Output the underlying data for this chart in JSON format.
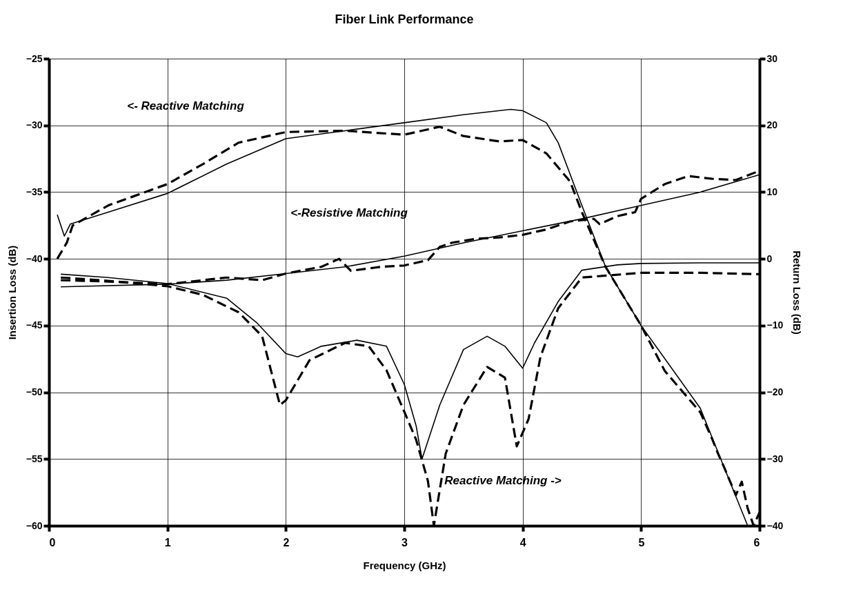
{
  "chart_data": {
    "type": "line",
    "title": "Fiber Link Performance",
    "xlabel": "Frequency (GHz)",
    "ylabel": "Insertion Loss (dB)",
    "y2label": "Return Loss (dB)",
    "xlim": [
      0,
      6
    ],
    "xticks": [
      0,
      1,
      2,
      3,
      4,
      5,
      6
    ],
    "ylim": [
      -60,
      -25
    ],
    "yticks": [
      -60,
      -55,
      -50,
      -45,
      -40,
      -35,
      -30,
      -25
    ],
    "y2lim": [
      -40,
      30
    ],
    "y2ticks": [
      -40,
      -30,
      -20,
      -10,
      0,
      10,
      20,
      30
    ],
    "grid": true,
    "marker": "none",
    "series": [
      {
        "color": "#000000",
        "line_style": "solid",
        "x": [
          0.07,
          0.13,
          0.18,
          0.5,
          1.0,
          1.5,
          2.0,
          2.5,
          3.0,
          3.5,
          3.9,
          4.0,
          4.2,
          4.3,
          4.5,
          4.7,
          5.0,
          5.5,
          5.9
        ],
        "values": [
          -36.7,
          -38.3,
          -37.4,
          -36.5,
          -35.1,
          -32.9,
          -31.0,
          -30.4,
          -29.8,
          -29.2,
          -28.8,
          -28.9,
          -29.8,
          -31.3,
          -36.0,
          -40.6,
          -45.0,
          -51.2,
          -60.0
        ]
      },
      {
        "color": "#000000",
        "line_style": "dashed",
        "x": [
          0.07,
          0.15,
          0.2,
          0.5,
          1.0,
          1.3,
          1.6,
          2.0,
          2.5,
          3.0,
          3.3,
          3.5,
          3.8,
          4.0,
          4.2,
          4.4,
          4.5,
          4.7,
          5.0,
          5.2,
          5.5,
          5.6,
          5.65,
          5.7,
          5.8,
          5.85,
          5.9,
          5.95,
          6.0
        ],
        "values": [
          -40.0,
          -38.8,
          -37.5,
          -36.0,
          -34.4,
          -32.9,
          -31.3,
          -30.5,
          -30.4,
          -30.7,
          -30.1,
          -30.8,
          -31.2,
          -31.1,
          -32.1,
          -34.2,
          -36.5,
          -40.6,
          -45.0,
          -48.4,
          -51.5,
          -53.5,
          -54.6,
          -55.6,
          -57.7,
          -56.7,
          -58.7,
          -60.0,
          -59.0
        ]
      },
      {
        "color": "#000000",
        "line_style": "solid",
        "x": [
          0.1,
          1.0,
          1.5,
          2.0,
          2.5,
          3.0,
          3.5,
          4.0,
          4.5,
          5.0,
          5.5,
          6.0
        ],
        "values": [
          -42.1,
          -41.9,
          -41.6,
          -41.1,
          -40.6,
          -39.8,
          -38.8,
          -37.9,
          -37.0,
          -36.0,
          -35.0,
          -33.7
        ]
      },
      {
        "color": "#000000",
        "line_style": "dashed",
        "x": [
          0.1,
          0.5,
          1.0,
          1.5,
          1.8,
          2.0,
          2.3,
          2.45,
          2.55,
          2.8,
          3.0,
          3.2,
          3.3,
          3.4,
          3.6,
          3.8,
          4.0,
          4.2,
          4.4,
          4.6,
          4.65,
          4.8,
          4.95,
          5.0,
          5.2,
          5.4,
          5.6,
          5.8,
          6.0
        ],
        "values": [
          -41.6,
          -41.7,
          -41.9,
          -41.4,
          -41.6,
          -41.1,
          -40.6,
          -40.0,
          -40.9,
          -40.6,
          -40.5,
          -40.1,
          -39.1,
          -38.8,
          -38.5,
          -38.4,
          -38.2,
          -37.8,
          -37.2,
          -37.0,
          -37.4,
          -36.8,
          -36.5,
          -35.5,
          -34.4,
          -33.8,
          -34.0,
          -34.1,
          -33.4
        ]
      },
      {
        "color": "#000000",
        "line_style": "solid",
        "axis": "y2",
        "x": [
          0.1,
          0.5,
          1.0,
          1.5,
          1.75,
          2.0,
          2.1,
          2.3,
          2.6,
          2.85,
          3.0,
          3.1,
          3.15,
          3.3,
          3.5,
          3.7,
          3.85,
          4.0,
          4.1,
          4.3,
          4.5,
          4.8,
          5.0,
          5.5,
          6.0
        ],
        "values": [
          -2.3,
          -2.8,
          -3.7,
          -5.9,
          -9.5,
          -14.2,
          -14.7,
          -13.1,
          -12.2,
          -13.1,
          -18.8,
          -25.0,
          -30.0,
          -21.9,
          -13.6,
          -11.6,
          -13.1,
          -16.4,
          -12.6,
          -6.4,
          -1.7,
          -0.9,
          -0.7,
          -0.6,
          -0.6
        ]
      },
      {
        "color": "#000000",
        "line_style": "dashed",
        "axis": "y2",
        "x": [
          0.1,
          0.5,
          1.0,
          1.3,
          1.6,
          1.8,
          1.95,
          2.0,
          2.2,
          2.5,
          2.7,
          2.85,
          3.0,
          3.1,
          3.2,
          3.25,
          3.35,
          3.5,
          3.7,
          3.85,
          3.95,
          4.05,
          4.15,
          4.3,
          4.5,
          5.0,
          5.5,
          6.0
        ],
        "values": [
          -2.8,
          -3.3,
          -4.1,
          -5.4,
          -8.0,
          -11.6,
          -21.9,
          -21.2,
          -15.2,
          -12.6,
          -13.1,
          -16.7,
          -22.9,
          -27.1,
          -33.3,
          -40.0,
          -29.2,
          -21.9,
          -16.2,
          -17.8,
          -28.1,
          -24.0,
          -14.7,
          -7.4,
          -2.8,
          -2.1,
          -2.1,
          -2.3
        ]
      }
    ],
    "annotations": [
      "<- Reactive Matching",
      "<-Resistive Matching",
      "Reactive Matching ->"
    ]
  }
}
